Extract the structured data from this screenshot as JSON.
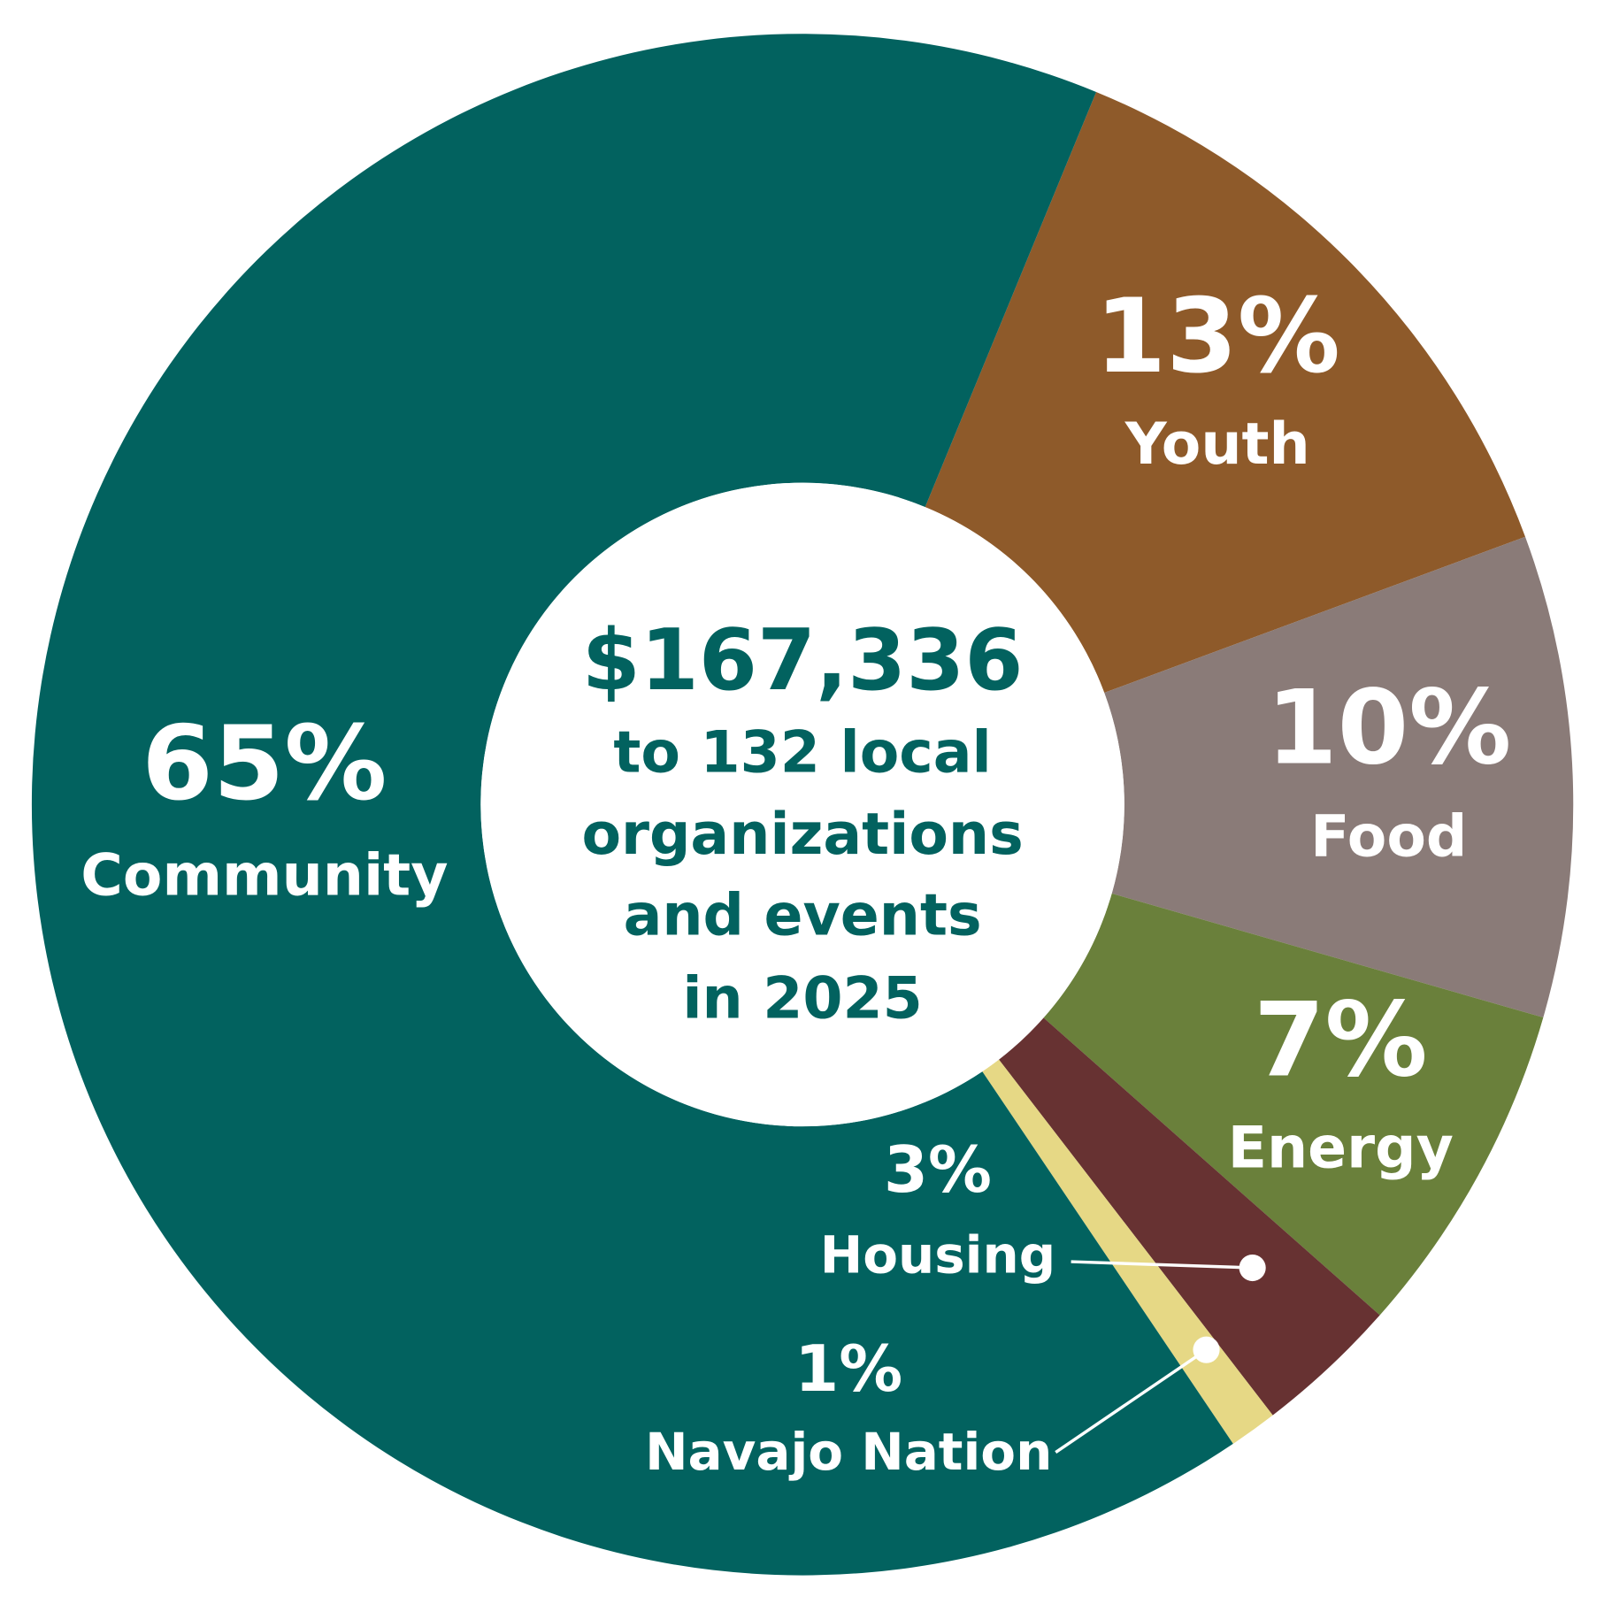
{
  "chart_data": {
    "type": "donut",
    "categories": [
      "Youth",
      "Food",
      "Energy",
      "Housing",
      "Navajo Nation",
      "Community"
    ],
    "values": [
      13,
      10,
      7,
      3,
      1,
      65
    ],
    "value_labels": [
      "13%",
      "10%",
      "7%",
      "3%",
      "1%",
      "65%"
    ],
    "colors": [
      "#8e5a2a",
      "#8a7b78",
      "#6a803b",
      "#673232",
      "#e6d885",
      "#02625f"
    ],
    "center_text": [
      "$167,336",
      "to 132 local",
      "organizations",
      "and events",
      "in 2025"
    ]
  }
}
